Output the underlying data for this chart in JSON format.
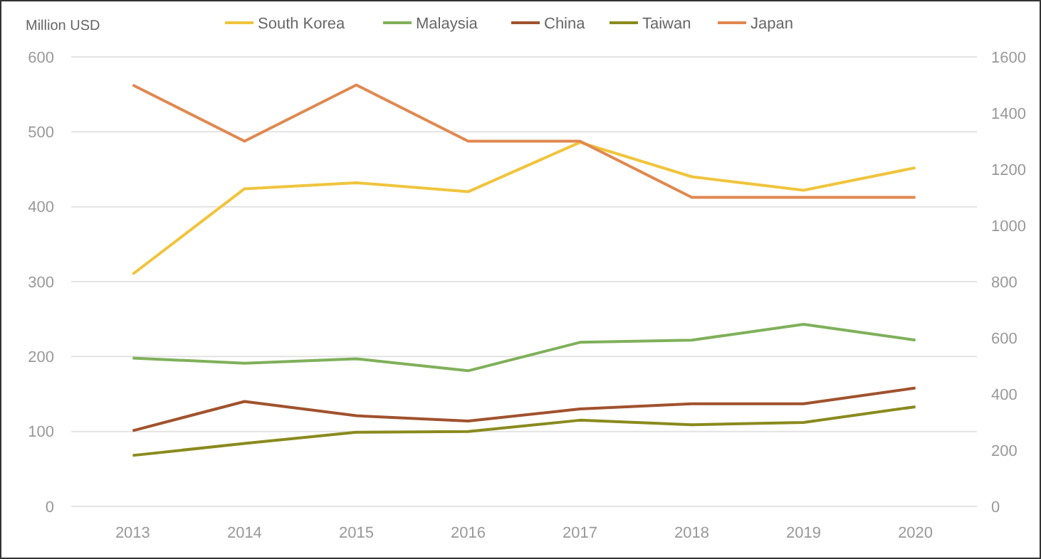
{
  "chart_data": {
    "type": "line",
    "ylabel": "Million USD",
    "categories": [
      "2013",
      "2014",
      "2015",
      "2016",
      "2017",
      "2018",
      "2019",
      "2020"
    ],
    "series": [
      {
        "name": "South Korea",
        "color": "#f0c43c",
        "values": [
          310,
          424,
          432,
          420,
          486,
          440,
          422,
          452
        ]
      },
      {
        "name": "Malaysia",
        "color": "#7fb05a",
        "values": [
          198,
          191,
          197,
          181,
          219,
          222,
          243,
          222
        ]
      },
      {
        "name": "China",
        "color": "#a0522d",
        "values": [
          101,
          140,
          121,
          114,
          130,
          137,
          137,
          158
        ]
      },
      {
        "name": "Taiwan",
        "color": "#8a8a1e",
        "values": [
          68,
          84,
          99,
          100,
          115,
          109,
          112,
          133
        ]
      },
      {
        "name": "Japan",
        "color": "#e08850",
        "axis": "y2",
        "values": [
          1500,
          1300,
          1500,
          1300,
          1300,
          1100,
          1100,
          1100
        ]
      }
    ],
    "ylim": [
      0,
      600
    ],
    "yticks": [
      0,
      100,
      200,
      300,
      400,
      500,
      600
    ],
    "y2lim": [
      0,
      1600
    ],
    "y2ticks": [
      0,
      200,
      400,
      600,
      800,
      1000,
      1200,
      1400,
      1600
    ],
    "grid": "y",
    "legend": "top",
    "marker": "none",
    "line_style": "solid"
  }
}
